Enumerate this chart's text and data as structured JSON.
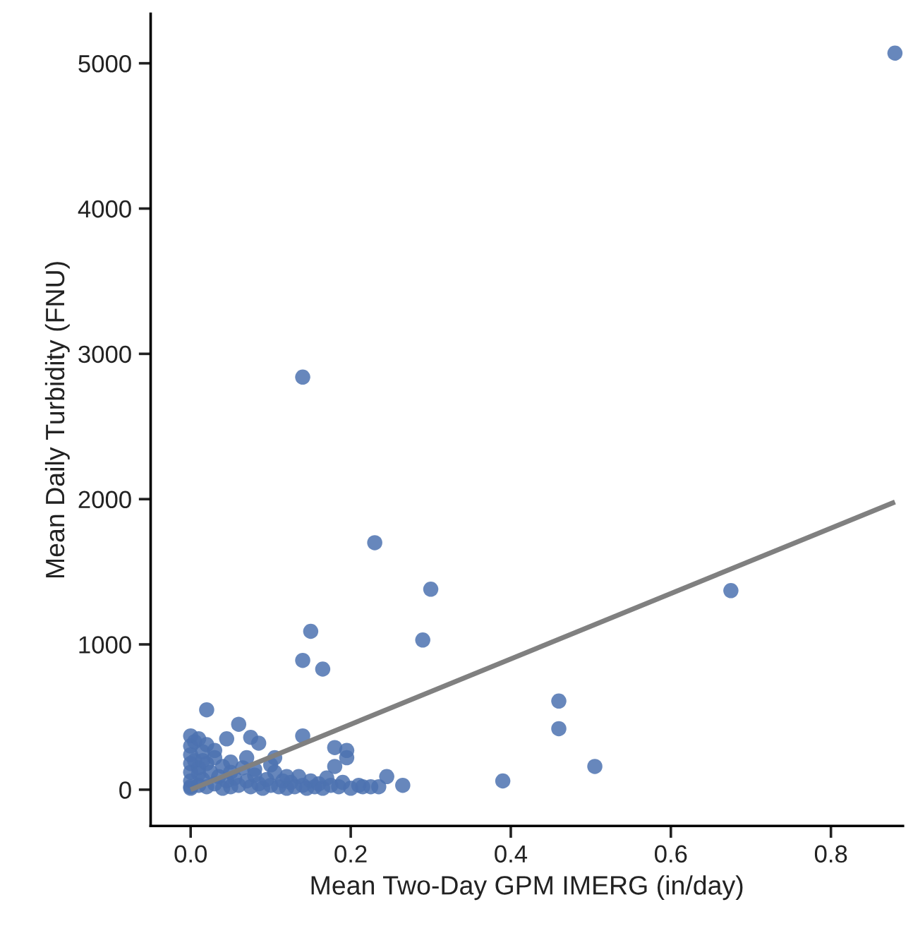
{
  "chart_data": {
    "type": "scatter",
    "xlabel": "Mean Two-Day GPM IMERG (in/day)",
    "ylabel": "Mean Daily Turbidity (FNU)",
    "xlim": [
      -0.05,
      0.89
    ],
    "ylim": [
      -250,
      5340
    ],
    "xticks": [
      {
        "value": 0,
        "label": "0.0"
      },
      0.2,
      0.4,
      0.6,
      0.8
    ],
    "yticks": [
      0,
      1000,
      2000,
      3000,
      4000,
      5000
    ],
    "grid": false,
    "series": [
      {
        "color": "#4c72b0",
        "marker": "circle",
        "x": [
          0.88,
          0.14,
          0.23,
          0.3,
          0.29,
          0.15,
          0.14,
          0.165,
          0.675,
          0.46,
          0.46,
          0.505,
          0.39,
          0.02,
          0.14,
          0.06,
          0.045,
          0.075,
          0.085,
          0.07,
          0.105,
          0.18,
          0.195,
          0.195,
          0.18,
          0.245,
          0.265,
          0.235,
          0.215,
          0.0,
          0.0,
          0.0,
          0.0,
          0.0,
          0.0,
          0.0,
          0.005,
          0.005,
          0.01,
          0.01,
          0.01,
          0.015,
          0.015,
          0.02,
          0.02,
          0.02,
          0.025,
          0.03,
          0.03,
          0.035,
          0.04,
          0.04,
          0.045,
          0.05,
          0.05,
          0.055,
          0.06,
          0.065,
          0.07,
          0.075,
          0.08,
          0.085,
          0.09,
          0.095,
          0.1,
          0.105,
          0.11,
          0.115,
          0.12,
          0.125,
          0.13,
          0.135,
          0.14,
          0.145,
          0.15,
          0.155,
          0.16,
          0.165,
          0.17,
          0.175,
          0.185,
          0.19,
          0.2,
          0.21,
          0.225,
          0.03,
          0.05,
          0.08,
          0.1,
          0.12,
          0.015,
          0.0,
          0.01
        ],
        "values": [
          5070,
          2840,
          1700,
          1380,
          1030,
          1090,
          890,
          830,
          1370,
          610,
          420,
          160,
          60,
          550,
          370,
          450,
          350,
          360,
          320,
          220,
          220,
          290,
          270,
          220,
          160,
          90,
          30,
          20,
          20,
          370,
          300,
          240,
          180,
          120,
          60,
          10,
          330,
          200,
          350,
          150,
          30,
          260,
          70,
          310,
          180,
          20,
          120,
          220,
          40,
          90,
          160,
          10,
          60,
          120,
          20,
          80,
          30,
          150,
          60,
          20,
          100,
          40,
          10,
          70,
          30,
          120,
          20,
          60,
          10,
          50,
          20,
          90,
          30,
          10,
          60,
          20,
          40,
          10,
          80,
          30,
          20,
          50,
          10,
          30,
          20,
          270,
          190,
          140,
          170,
          90,
          200,
          20,
          110
        ]
      },
      {
        "type": "line",
        "color": "#808080",
        "marker": "none",
        "x": [
          0.0,
          0.88
        ],
        "values": [
          0,
          1980
        ]
      }
    ]
  }
}
